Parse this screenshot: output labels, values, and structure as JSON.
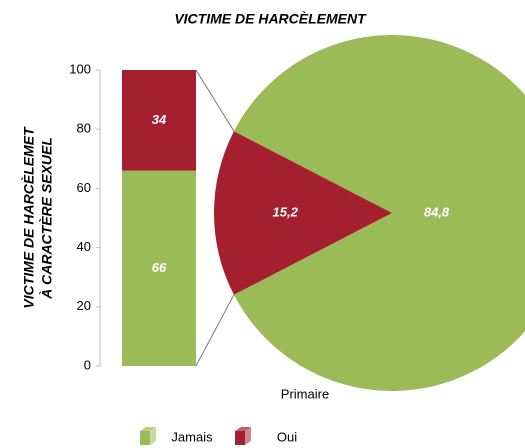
{
  "chart_data": [
    {
      "type": "bar",
      "stacked": true,
      "title": "VICTIME DE HARCÈLEMENT",
      "ylabel": [
        "VICTIME DE HARCÈLEMET",
        "À CARACTÈRE SEXUEL"
      ],
      "xlabel": "Primaire",
      "series": [
        {
          "name": "Jamais",
          "color": "#9bbb59",
          "values": [
            66
          ]
        },
        {
          "name": "Oui",
          "color": "#a5202e",
          "values": [
            34
          ]
        }
      ],
      "ylim": [
        0,
        100
      ],
      "yticks": [
        0,
        20,
        40,
        60,
        80,
        100
      ],
      "legend": "bottom"
    },
    {
      "type": "pie",
      "values": [
        84.8,
        15.2
      ],
      "value_labels": [
        "84,8",
        "15,2"
      ],
      "colors": [
        "#9bbb59",
        "#a5202e"
      ]
    }
  ]
}
